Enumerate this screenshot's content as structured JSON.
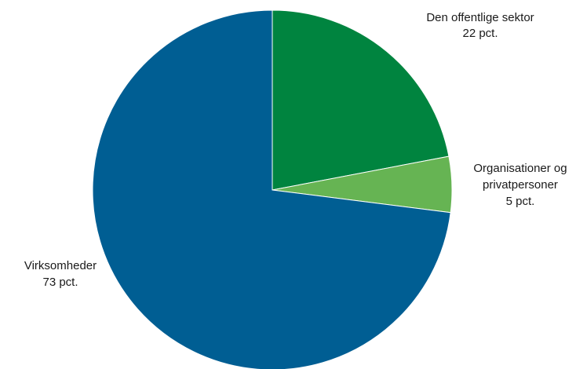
{
  "chart_data": {
    "type": "pie",
    "title": "",
    "slices": [
      {
        "label_lines": [
          "Den offentlige sektor",
          "22 pct."
        ],
        "value": 22,
        "color": "#00843f"
      },
      {
        "label_lines": [
          "Organisationer og",
          "privatpersoner",
          "5 pct."
        ],
        "value": 5,
        "color": "#66b453"
      },
      {
        "label_lines": [
          "Virksomheder",
          "73 pct."
        ],
        "value": 73,
        "color": "#005e93"
      }
    ],
    "start_angle_deg": 0,
    "direction": "clockwise",
    "legend": "none"
  }
}
